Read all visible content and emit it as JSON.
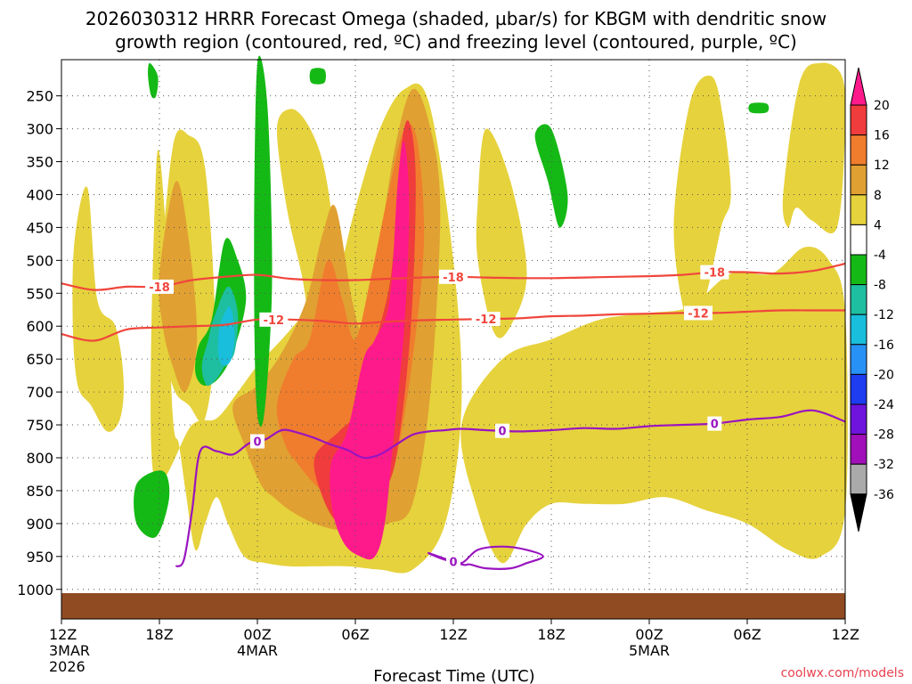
{
  "chart_data": {
    "type": "time-height cross section",
    "title_line1": "2026030312 HRRR Forecast Omega (shaded, µbar/s) for KBGM with dendritic snow",
    "title_line2": "growth region (contoured, red, ºC) and freezing level (contoured, purple, ºC)",
    "xlabel": "Forecast Time (UTC)",
    "credit": "coolwx.com/models",
    "y_axis": {
      "unit": "hPa",
      "ticks": [
        250,
        300,
        350,
        400,
        450,
        500,
        550,
        600,
        650,
        700,
        750,
        800,
        850,
        900,
        950,
        1000
      ],
      "range": [
        1045,
        195
      ]
    },
    "x_axis": {
      "range_hours": [
        0,
        48
      ],
      "ticks": [
        {
          "h": 0,
          "lines": [
            "12Z",
            "3MAR",
            "2026"
          ]
        },
        {
          "h": 6,
          "lines": [
            "18Z"
          ]
        },
        {
          "h": 12,
          "lines": [
            "00Z",
            "4MAR"
          ]
        },
        {
          "h": 18,
          "lines": [
            "06Z"
          ]
        },
        {
          "h": 24,
          "lines": [
            "12Z"
          ]
        },
        {
          "h": 30,
          "lines": [
            "18Z"
          ]
        },
        {
          "h": 36,
          "lines": [
            "00Z",
            "5MAR"
          ]
        },
        {
          "h": 42,
          "lines": [
            "06Z"
          ]
        },
        {
          "h": 48,
          "lines": [
            "12Z"
          ]
        }
      ]
    },
    "colorbar": {
      "labels": [
        "20",
        "16",
        "12",
        "8",
        "4",
        "-4",
        "-8",
        "-12",
        "-16",
        "-20",
        "-24",
        "-28",
        "-32",
        "-36"
      ],
      "colors": [
        "#ff1a8c",
        "#f03c3c",
        "#f07d2d",
        "#e0a032",
        "#e6d23c",
        "#ffffff",
        "#15b915",
        "#1ebea0",
        "#19bedc",
        "#2891f5",
        "#1e3cf0",
        "#6e14dc",
        "#a00fb9",
        "#aaaaaa",
        "#000000"
      ]
    },
    "surface_color": "#914b23",
    "series": [
      {
        "name": "dgz_minus18",
        "label": "-18",
        "color": "#f0463c",
        "x": [
          0,
          2,
          4,
          6,
          8,
          10,
          12,
          14,
          16,
          18,
          20,
          22,
          24,
          26,
          28,
          30,
          32,
          34,
          36,
          38,
          40,
          42,
          44,
          46,
          48
        ],
        "y": [
          535,
          545,
          540,
          540,
          530,
          525,
          522,
          528,
          530,
          530,
          528,
          526,
          525,
          526,
          527,
          527,
          526,
          525,
          524,
          522,
          518,
          518,
          520,
          516,
          505
        ],
        "labels_at_hours": [
          6,
          24,
          40
        ]
      },
      {
        "name": "dgz_minus12",
        "label": "-12",
        "color": "#f0463c",
        "x": [
          0,
          2,
          4,
          6,
          8,
          10,
          12,
          14,
          16,
          18,
          20,
          22,
          24,
          26,
          28,
          30,
          32,
          34,
          36,
          38,
          40,
          42,
          44,
          46,
          48
        ],
        "y": [
          612,
          622,
          605,
          602,
          600,
          598,
          590,
          590,
          592,
          596,
          593,
          591,
          590,
          589,
          588,
          585,
          584,
          582,
          581,
          580,
          580,
          578,
          576,
          576,
          576
        ],
        "labels_at_hours": [
          13,
          26,
          39
        ]
      },
      {
        "name": "freezing_level",
        "label": "0",
        "color": "#9a14c0",
        "x": [
          7,
          7.5,
          8,
          8.5,
          9.5,
          10.5,
          11.5,
          12.5,
          13.5,
          14.5,
          15.5,
          16.5,
          17.5,
          18.5,
          19.5,
          20.5,
          21.5,
          22.5,
          23.5,
          24.5,
          26,
          28,
          30,
          32,
          34,
          36,
          38,
          40,
          42,
          44,
          46,
          48
        ],
        "y": [
          965,
          955,
          880,
          790,
          790,
          795,
          778,
          772,
          758,
          762,
          770,
          780,
          788,
          800,
          795,
          780,
          765,
          760,
          758,
          756,
          758,
          760,
          758,
          755,
          756,
          752,
          750,
          748,
          742,
          738,
          728,
          745
        ],
        "labels_at_hours": [
          12,
          27,
          40
        ]
      },
      {
        "name": "freezing_level_lower",
        "label": "0",
        "color": "#9a14c0",
        "x": [
          22.5,
          23.5,
          24.5,
          25.5,
          27,
          28.5,
          29.5,
          28.5,
          27.5,
          26,
          25,
          24.5
        ],
        "y": [
          945,
          955,
          960,
          940,
          935,
          940,
          950,
          960,
          968,
          968,
          962,
          962
        ],
        "labels_at_hours": [
          24
        ]
      }
    ],
    "omega_regions": [
      {
        "level": "4",
        "color": "#e6d23c",
        "x": [
          5.6,
          8,
          9.5,
          10.8,
          12,
          13.5,
          15,
          16.5,
          18,
          19.5,
          21,
          22.5,
          24,
          24.5,
          23.5,
          21.5,
          19.5,
          17.5,
          15.5,
          14,
          12.5,
          11.2,
          10.2,
          9.5,
          8.8,
          8.2,
          7.6,
          7.2,
          6.8,
          6.3,
          5.8
        ],
        "y": [
          820,
          750,
          740,
          700,
          660,
          620,
          580,
          560,
          420,
          300,
          240,
          260,
          500,
          720,
          900,
          970,
          970,
          965,
          965,
          965,
          960,
          950,
          900,
          860,
          900,
          940,
          850,
          780,
          730,
          420,
          360
        ]
      },
      {
        "level": "4",
        "color": "#e6d23c",
        "x": [
          0.8,
          1.6,
          2.2,
          3.3,
          3.8,
          3.6,
          2.8,
          1.8,
          1.0,
          0.7
        ],
        "y": [
          470,
          390,
          560,
          600,
          680,
          740,
          760,
          720,
          690,
          600
        ]
      },
      {
        "level": "4",
        "color": "#e6d23c",
        "x": [
          6,
          6.8,
          7.8,
          8.8,
          9.4,
          8.8,
          7.8,
          6.8
        ],
        "y": [
          580,
          330,
          310,
          360,
          600,
          740,
          720,
          690
        ]
      },
      {
        "level": "4",
        "color": "#e6d23c",
        "x": [
          13.2,
          14,
          15,
          16,
          16.6,
          16.3,
          15.5,
          14.7,
          13.8
        ],
        "y": [
          300,
          270,
          290,
          350,
          450,
          520,
          620,
          520,
          420
        ]
      },
      {
        "level": "4",
        "color": "#e6d23c",
        "x": [
          25.5,
          26,
          27.5,
          28.5,
          27.5,
          26.5,
          25.5
        ],
        "y": [
          410,
          300,
          380,
          520,
          600,
          610,
          500
        ]
      },
      {
        "level": "4",
        "color": "#e6d23c",
        "x": [
          24.5,
          27,
          30,
          33,
          36,
          38.5,
          41,
          43.5,
          45.5,
          47,
          48,
          48,
          46.5,
          44.5,
          42,
          39.5,
          37,
          34.5,
          32,
          30,
          28.5,
          27,
          25.5
        ],
        "y": [
          750,
          650,
          620,
          590,
          580,
          570,
          520,
          520,
          480,
          500,
          580,
          880,
          950,
          940,
          900,
          880,
          860,
          870,
          870,
          870,
          900,
          960,
          880
        ]
      },
      {
        "level": "4",
        "color": "#e6d23c",
        "x": [
          37.5,
          38.5,
          39.8,
          40.5,
          41,
          40.4,
          39.4,
          38.4
        ],
        "y": [
          450,
          260,
          220,
          280,
          400,
          450,
          560,
          600
        ]
      },
      {
        "level": "4",
        "color": "#e6d23c",
        "x": [
          44.2,
          45.2,
          46.5,
          47.8,
          48,
          47.5,
          46,
          45,
          44.5
        ],
        "y": [
          400,
          230,
          200,
          220,
          300,
          450,
          440,
          420,
          450
        ]
      },
      {
        "level": "8",
        "color": "#e0a032",
        "x": [
          10.5,
          12,
          13.5,
          15,
          16,
          16.8,
          17.8,
          18.5,
          19.5,
          20.5,
          21.5,
          22.5,
          23.2,
          22.6,
          21.5,
          20,
          18.5,
          17,
          15.5,
          14,
          13,
          12.2,
          11.2
        ],
        "y": [
          720,
          690,
          640,
          560,
          460,
          420,
          560,
          600,
          470,
          320,
          240,
          290,
          420,
          700,
          870,
          900,
          910,
          910,
          900,
          880,
          860,
          840,
          780
        ]
      },
      {
        "level": "8",
        "color": "#e0a032",
        "x": [
          6,
          7,
          7.8,
          8.3,
          7.6,
          6.8,
          6.2
        ],
        "y": [
          520,
          380,
          470,
          620,
          700,
          660,
          600
        ]
      },
      {
        "level": "12",
        "color": "#f07d2d",
        "x": [
          13.2,
          14.2,
          15.2,
          16.3,
          17.2,
          18,
          19,
          20,
          21,
          21.8,
          22.2,
          21.5,
          20.5,
          19.5,
          18.5,
          17.5,
          16.5,
          15.5,
          14.5,
          13.7
        ],
        "y": [
          720,
          650,
          620,
          500,
          560,
          620,
          520,
          400,
          300,
          320,
          470,
          650,
          800,
          850,
          870,
          870,
          860,
          840,
          810,
          780
        ]
      },
      {
        "level": "16",
        "color": "#f03c3c",
        "x": [
          15.5,
          17,
          18.5,
          19.2,
          20.2,
          20.8,
          21.3,
          21.7,
          21.4,
          20.5,
          19.5,
          18.5,
          17,
          16
        ],
        "y": [
          800,
          760,
          720,
          630,
          520,
          330,
          290,
          380,
          600,
          800,
          860,
          900,
          900,
          860
        ]
      },
      {
        "level": "20",
        "color": "#ff1a8c",
        "x": [
          16.5,
          17.5,
          18.5,
          19.2,
          20.1,
          20.6,
          21,
          21.3,
          21,
          20.3,
          19.8,
          19.2,
          18.3,
          17.3,
          16.6
        ],
        "y": [
          810,
          760,
          650,
          620,
          560,
          380,
          320,
          420,
          600,
          780,
          900,
          950,
          950,
          930,
          880
        ]
      },
      {
        "level": "-4",
        "color": "#15b915",
        "x": [
          12,
          12.6,
          12.9,
          12.7,
          12.3,
          11.9,
          11.8
        ],
        "y": [
          200,
          260,
          500,
          650,
          750,
          700,
          450
        ]
      },
      {
        "level": "-4",
        "color": "#15b915",
        "x": [
          9.2,
          10,
          10.8,
          11.3,
          10.5,
          9.6,
          8.7,
          8.2,
          8.4
        ],
        "y": [
          590,
          470,
          500,
          560,
          640,
          680,
          690,
          670,
          630
        ]
      },
      {
        "level": "-4",
        "color": "#15b915",
        "x": [
          5.4,
          5.9,
          5.8,
          5.5,
          5.3
        ],
        "y": [
          200,
          220,
          250,
          250,
          220
        ]
      },
      {
        "level": "-4",
        "color": "#15b915",
        "x": [
          15.3,
          16.1,
          16.1,
          15.3
        ],
        "y": [
          210,
          210,
          230,
          230
        ]
      },
      {
        "level": "-4",
        "color": "#15b915",
        "x": [
          29,
          30,
          31,
          30.5,
          29.8
        ],
        "y": [
          310,
          300,
          400,
          450,
          380
        ]
      },
      {
        "level": "-4",
        "color": "#15b915",
        "x": [
          4.6,
          6.2,
          6.6,
          5.8,
          4.6
        ],
        "y": [
          840,
          820,
          860,
          920,
          900
        ]
      },
      {
        "level": "-4",
        "color": "#15b915",
        "x": [
          42.2,
          43.2,
          43.2,
          42.2
        ],
        "y": [
          262,
          262,
          275,
          275
        ]
      },
      {
        "level": "-8",
        "color": "#1ebea0",
        "x": [
          9.3,
          10.2,
          10.8,
          10.6,
          10,
          9.5,
          8.9,
          8.6,
          9
        ],
        "y": [
          590,
          540,
          580,
          640,
          660,
          680,
          690,
          660,
          620
        ]
      },
      {
        "level": "-12",
        "color": "#19bedc",
        "x": [
          9.7,
          10.3,
          10.6,
          10.4,
          9.9,
          9.6
        ],
        "y": [
          600,
          570,
          610,
          650,
          660,
          640
        ]
      }
    ]
  }
}
